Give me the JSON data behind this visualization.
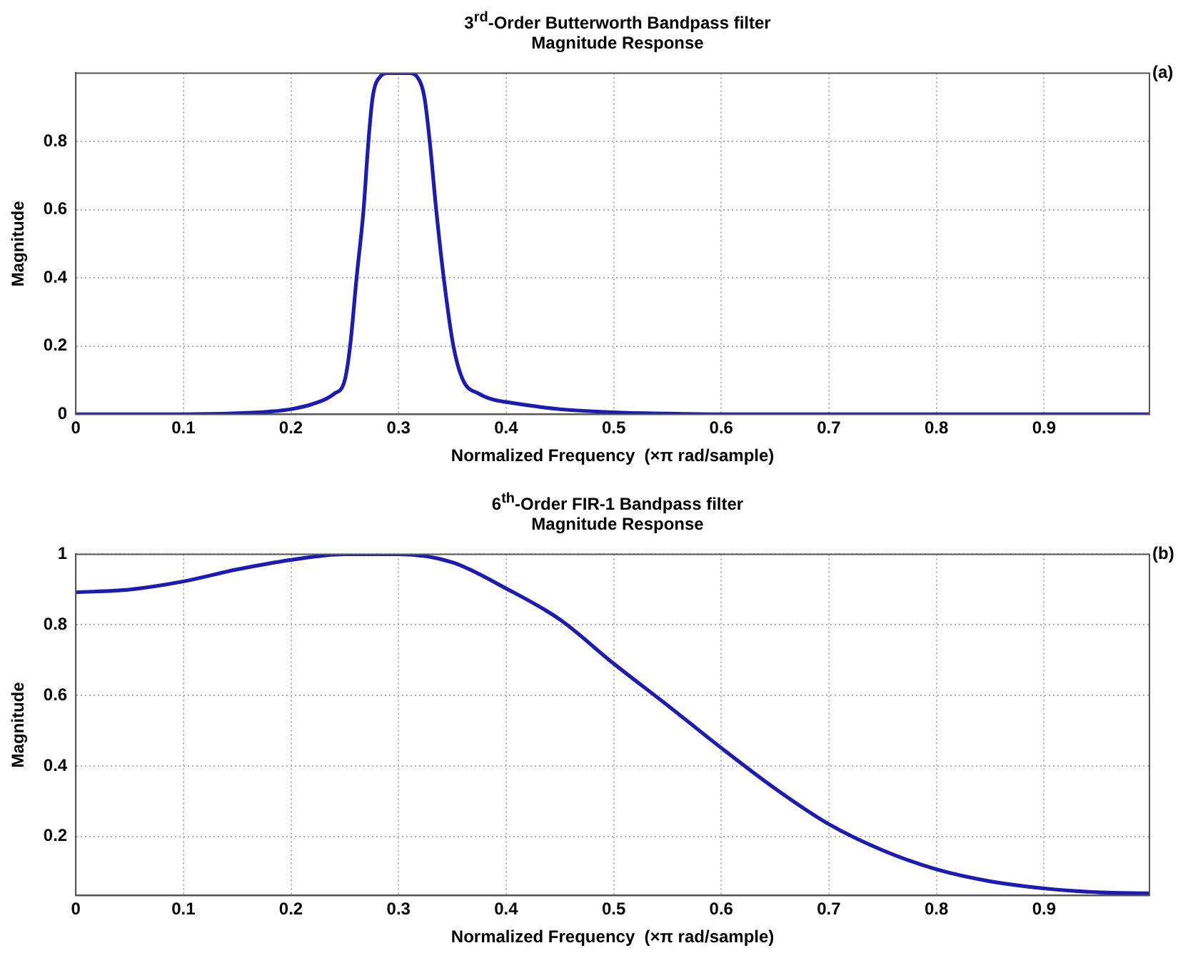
{
  "chart_data": [
    {
      "type": "line",
      "title": "3$^{rd}$-Order Butterworth Bandpass filter",
      "subtitle": "Magnitude Response",
      "xlabel": "Normalized Frequency  (×π rad/sample)",
      "ylabel": "Magnitude",
      "annotations": [
        "(a)"
      ],
      "x": [
        0,
        0.1,
        0.15,
        0.18,
        0.2,
        0.22,
        0.24,
        0.25,
        0.255,
        0.261,
        0.2675,
        0.272,
        0.276,
        0.283,
        0.29,
        0.31,
        0.317,
        0.324,
        0.329,
        0.335,
        0.342,
        0.351,
        0.36,
        0.375,
        0.388,
        0.4,
        0.45,
        0.5,
        0.55,
        0.6,
        0.998
      ],
      "series": [
        {
          "color": "#1c1cb4",
          "values": [
            0,
            0,
            0.003,
            0.008,
            0.015,
            0.03,
            0.06,
            0.1,
            0.2,
            0.4,
            0.6,
            0.8,
            0.93,
            0.99,
            1,
            1,
            0.99,
            0.93,
            0.8,
            0.6,
            0.4,
            0.2,
            0.1,
            0.06,
            0.043,
            0.036,
            0.015,
            0.006,
            0.002,
            0,
            0
          ]
        }
      ],
      "xlim": [
        0,
        0.998
      ],
      "xticks": [
        0,
        0.1,
        0.2,
        0.3,
        0.4,
        0.5,
        0.6,
        0.7,
        0.8,
        0.9
      ],
      "ylim": [
        0,
        1
      ],
      "yticks": [
        0,
        0.2,
        0.4,
        0.6,
        0.8
      ],
      "grid": true,
      "legend": false,
      "marker": "none",
      "line_style": "solid"
    },
    {
      "type": "line",
      "title": "6$^{th}$-Order FIR-1 Bandpass filter",
      "subtitle": "Magnitude Response",
      "xlabel": "Normalized Frequency  (×π rad/sample)",
      "ylabel": "Magnitude",
      "annotations": [
        "(b)"
      ],
      "x": [
        0,
        0.05,
        0.1,
        0.15,
        0.2,
        0.25,
        0.3,
        0.35,
        0.4,
        0.45,
        0.5,
        0.55,
        0.6,
        0.65,
        0.7,
        0.75,
        0.8,
        0.85,
        0.9,
        0.95,
        0.998
      ],
      "series": [
        {
          "color": "#1c1cb4",
          "values": [
            0.892,
            0.9,
            0.923,
            0.957,
            0.984,
            1,
            1,
            0.977,
            0.903,
            0.815,
            0.69,
            0.572,
            0.451,
            0.336,
            0.235,
            0.161,
            0.107,
            0.073,
            0.053,
            0.042,
            0.039
          ]
        }
      ],
      "xlim": [
        0,
        0.998
      ],
      "xticks": [
        0,
        0.1,
        0.2,
        0.3,
        0.4,
        0.5,
        0.6,
        0.7,
        0.8,
        0.9
      ],
      "ylim": [
        0.033,
        1
      ],
      "yticks": [
        0.2,
        0.4,
        0.6,
        0.8,
        1
      ],
      "grid": true,
      "legend": false,
      "marker": "none",
      "line_style": "solid"
    }
  ]
}
